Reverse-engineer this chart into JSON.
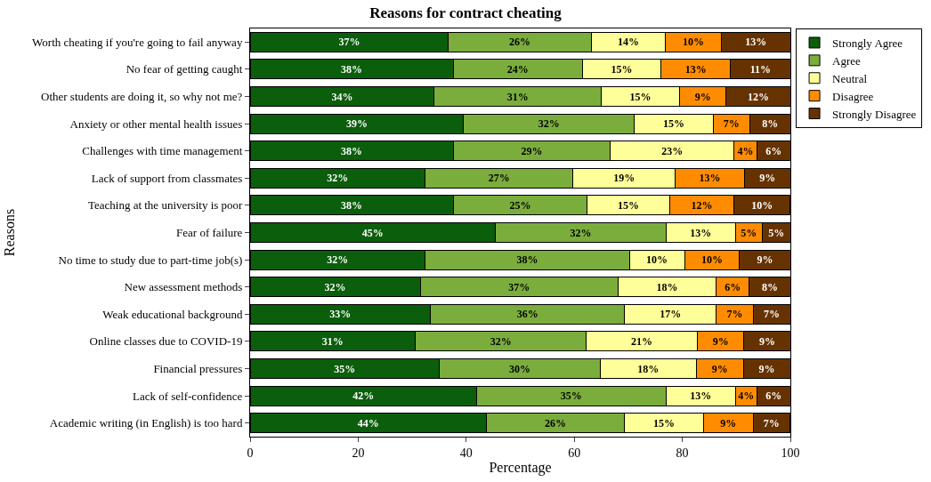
{
  "chart_data": {
    "type": "bar",
    "orientation": "horizontal",
    "stacked": true,
    "title": "Reasons for contract cheating",
    "xlabel": "Percentage",
    "ylabel": "Reasons",
    "categories": [
      "Worth cheating if you're going to fail anyway",
      "No fear of getting caught",
      "Other students are doing it, so why not me?",
      "Anxiety or other mental health issues",
      "Challenges with time management",
      "Lack of support from classmates",
      "Teaching at the university is poor",
      "Fear of failure",
      "No time to study due to part-time job(s)",
      "New assessment methods",
      "Weak educational background",
      "Online classes due to COVID-19",
      "Financial pressures",
      "Lack of self-confidence",
      "Academic writing (in English) is too hard"
    ],
    "series": [
      {
        "name": "Strongly Agree",
        "color": "#0b5e0b",
        "values": [
          36.7,
          37.6,
          34.1,
          39.5,
          37.6,
          32.4,
          37.6,
          45.4,
          32.4,
          31.5,
          33.4,
          30.6,
          35.0,
          41.9,
          43.7
        ],
        "value_labels": [
          "37%",
          "38%",
          "34%",
          "39%",
          "38%",
          "32%",
          "38%",
          "45%",
          "32%",
          "32%",
          "33%",
          "31%",
          "35%",
          "42%",
          "44%"
        ]
      },
      {
        "name": "Agree",
        "color": "#7aad3c",
        "values": [
          26.4,
          23.9,
          30.9,
          31.6,
          29.1,
          27.4,
          24.8,
          31.6,
          37.8,
          36.6,
          35.9,
          31.6,
          29.8,
          35.1,
          25.6
        ],
        "value_labels": [
          "26%",
          "24%",
          "31%",
          "32%",
          "29%",
          "27%",
          "25%",
          "32%",
          "38%",
          "37%",
          "36%",
          "32%",
          "30%",
          "35%",
          "26%"
        ]
      },
      {
        "name": "Neutral",
        "color": "#ffff99",
        "values": [
          13.8,
          14.6,
          14.5,
          14.6,
          22.9,
          18.9,
          15.2,
          12.8,
          10.2,
          18.2,
          17.0,
          20.6,
          17.8,
          12.8,
          14.6
        ],
        "value_labels": [
          "14%",
          "15%",
          "15%",
          "15%",
          "23%",
          "19%",
          "15%",
          "13%",
          "10%",
          "18%",
          "17%",
          "21%",
          "18%",
          "13%",
          "15%"
        ]
      },
      {
        "name": "Disagree",
        "color": "#ff8c00",
        "values": [
          10.3,
          12.8,
          8.6,
          6.8,
          4.2,
          12.8,
          12.0,
          5.0,
          10.2,
          6.1,
          6.8,
          8.6,
          8.7,
          4.0,
          9.2
        ],
        "value_labels": [
          "10%",
          "13%",
          "9%",
          "7%",
          "4%",
          "13%",
          "12%",
          "5%",
          "10%",
          "6%",
          "7%",
          "9%",
          "9%",
          "4%",
          "9%"
        ]
      },
      {
        "name": "Strongly Disagree",
        "color": "#663300",
        "values": [
          12.8,
          11.1,
          11.9,
          7.5,
          6.2,
          8.5,
          10.3,
          5.2,
          9.4,
          7.6,
          6.9,
          8.6,
          8.7,
          6.2,
          6.8
        ],
        "value_labels": [
          "13%",
          "11%",
          "12%",
          "8%",
          "6%",
          "9%",
          "10%",
          "5%",
          "9%",
          "8%",
          "7%",
          "9%",
          "9%",
          "6%",
          "7%"
        ]
      }
    ],
    "xlim": [
      0,
      100
    ],
    "xticks": [
      0,
      20,
      40,
      60,
      80,
      100
    ],
    "legend": "top right"
  }
}
